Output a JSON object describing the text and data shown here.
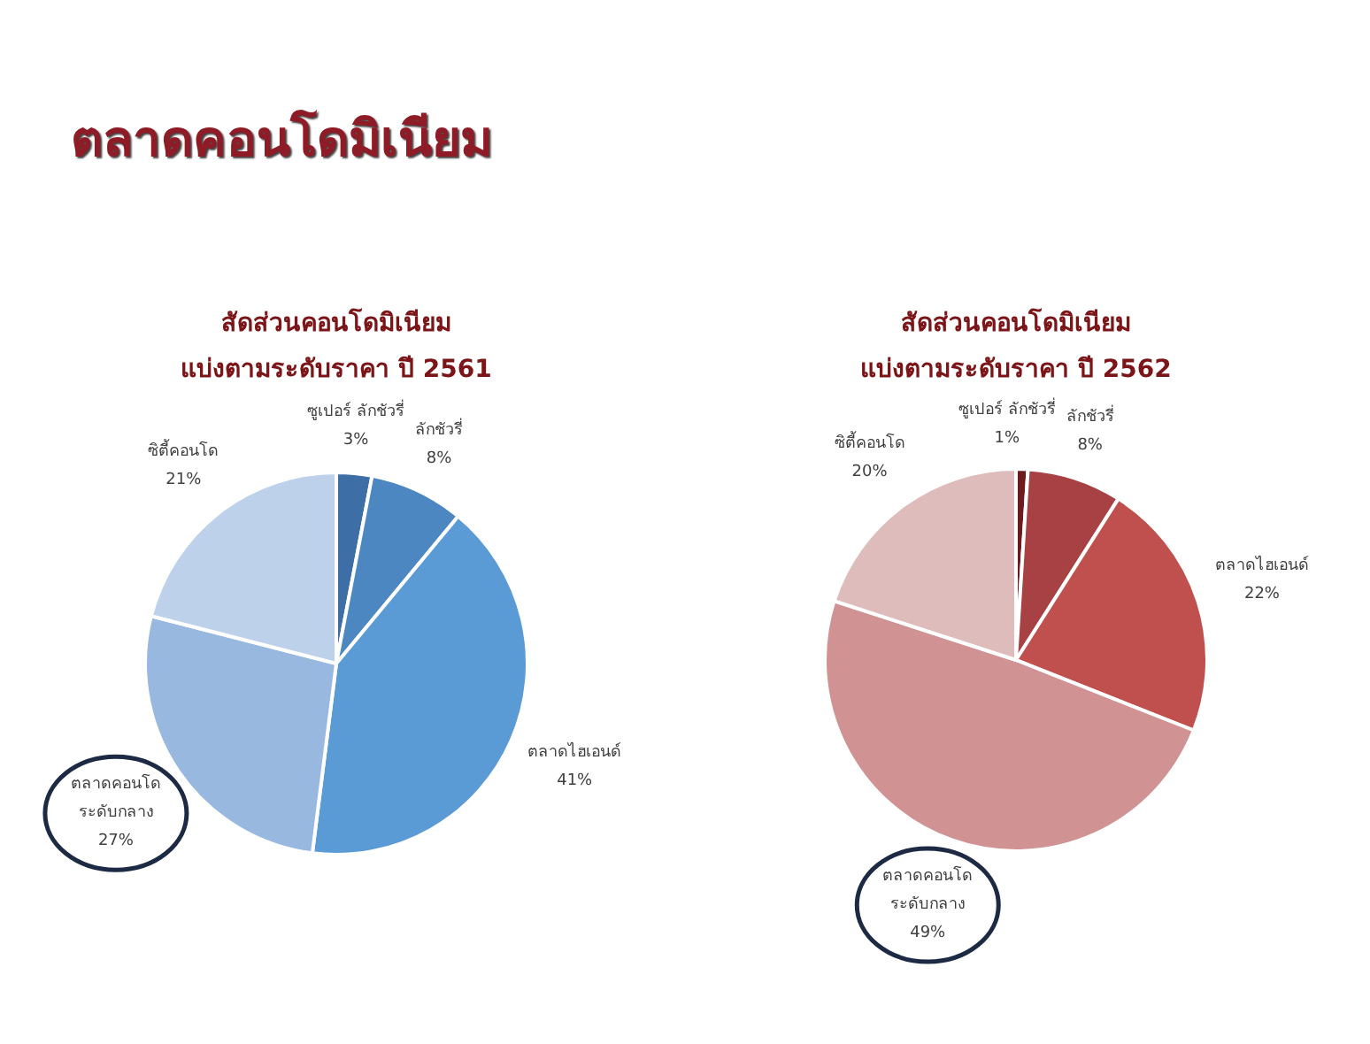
{
  "chart_data": [
    {
      "type": "pie",
      "title": "สัดส่วนคอนโดมิเนียม\nแบ่งตามระดับราคา ปี 2561",
      "annotations": [
        "ตลาดคอนโดมิเนียม"
      ],
      "categories": [
        "ซูเปอร์ ลักชัวรี่",
        "ลักชัวรี่",
        "ตลาดไฮเอนด์",
        "ตลาดคอนโด\nระดับกลาง",
        "ซิตี้คอนโด"
      ],
      "values": [
        3,
        8,
        41,
        27,
        21
      ],
      "colors": [
        "#3d6ea5",
        "#4c87c2",
        "#5b9bd5",
        "#98b8e0",
        "#bdd1ea"
      ],
      "value_labels": [
        "3%",
        "8%",
        "41%",
        "27%",
        "21%"
      ]
    },
    {
      "type": "pie",
      "title": "สัดส่วนคอนโดมิเนียม\nแบ่งตามระดับราคา ปี 2562",
      "categories": [
        "ซูเปอร์ ลักชัวรี่",
        "ลักชัวรี่",
        "ตลาดไฮเอนด์",
        "ตลาดคอนโด\nระดับกลาง",
        "ซิตี้คอนโด"
      ],
      "values": [
        1,
        8,
        22,
        49,
        20
      ],
      "colors": [
        "#6e1b1d",
        "#a84143",
        "#c0504d",
        "#d09292",
        "#dfbcbc"
      ],
      "value_labels": [
        "1%",
        "8%",
        "22%",
        "49%",
        "20%"
      ]
    }
  ]
}
